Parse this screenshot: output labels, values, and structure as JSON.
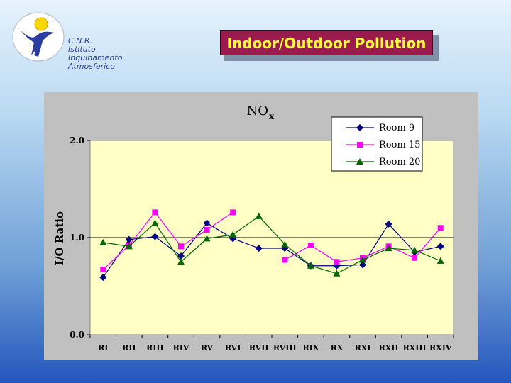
{
  "logo": {
    "lines": [
      "C.N.R.",
      "Istituto",
      "Inquinamento",
      "Atmosferico"
    ]
  },
  "slide_title": "Indoor/Outdoor Pollution",
  "chart_data": {
    "type": "line",
    "title_main": "NO",
    "title_sub": "x",
    "ylabel": "I/O Ratio",
    "xlabel": "",
    "ylim": [
      0.0,
      2.0
    ],
    "yticks": [
      "0.0",
      "1.0",
      "2.0"
    ],
    "reference_line": 1.0,
    "grid": false,
    "legend_position": "top-right",
    "categories": [
      "RI",
      "RII",
      "RIII",
      "RIV",
      "RV",
      "RVI",
      "RVII",
      "RVIII",
      "RIX",
      "RX",
      "RXI",
      "RXII",
      "RXIII",
      "RXIV"
    ],
    "series": [
      {
        "name": "Room 9",
        "color": "#000080",
        "marker": "diamond",
        "values": [
          0.59,
          0.98,
          1.01,
          0.81,
          1.15,
          0.99,
          0.89,
          0.89,
          0.71,
          0.71,
          0.72,
          1.14,
          0.85,
          0.91
        ]
      },
      {
        "name": "Room 15",
        "color": "#ff00ff",
        "marker": "square",
        "values": [
          0.67,
          0.92,
          1.26,
          0.91,
          1.08,
          1.26,
          null,
          0.77,
          0.92,
          0.75,
          0.79,
          0.91,
          0.79,
          1.1
        ]
      },
      {
        "name": "Room 20",
        "color": "#006400",
        "marker": "triangle",
        "values": [
          0.95,
          0.91,
          1.15,
          0.75,
          0.99,
          1.03,
          1.22,
          0.93,
          0.71,
          0.63,
          0.77,
          0.89,
          0.87,
          0.76
        ]
      }
    ]
  }
}
